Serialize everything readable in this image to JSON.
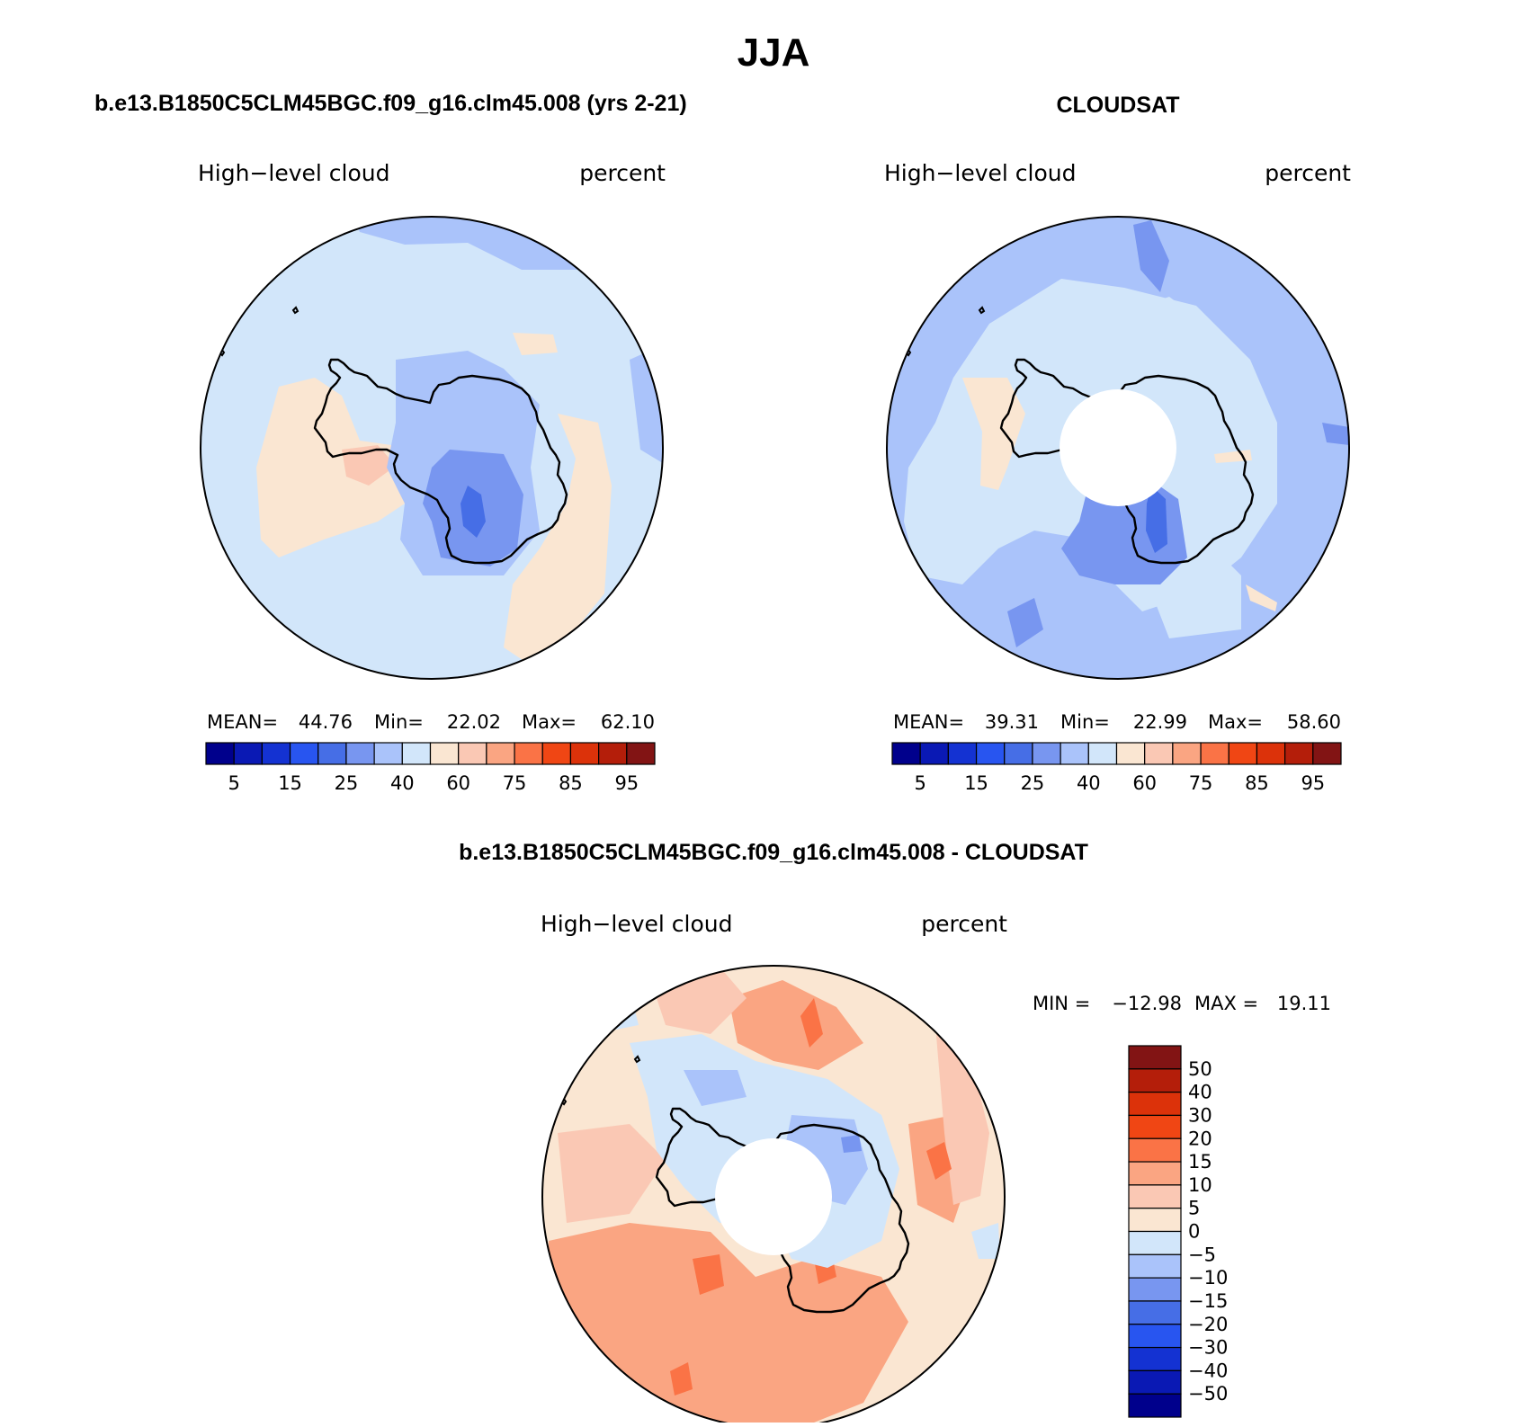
{
  "figure_title": "JJA",
  "chart_data": [
    {
      "type": "heatmap",
      "projection": "south-polar-stereographic",
      "title": "b.e13.B1850C5CLM45BGC.f09_g16.clm45.008 (yrs 2-21)",
      "variable": "High−level cloud",
      "units": "percent",
      "stats": {
        "mean_label": "MEAN=",
        "mean": "44.76",
        "min_label": "Min=",
        "min": "22.02",
        "max_label": "Max=",
        "max": "62.10"
      },
      "colorbar": {
        "orientation": "horizontal",
        "tick_labels": [
          "5",
          "15",
          "25",
          "40",
          "60",
          "75",
          "85",
          "95"
        ],
        "colors": [
          "#00008c",
          "#0a19b4",
          "#1432d2",
          "#2855f0",
          "#466ee6",
          "#7896f0",
          "#aac3fa",
          "#d2e6fa",
          "#fae6d2",
          "#fac8b4",
          "#faa582",
          "#fa7346",
          "#f04614",
          "#dc320a",
          "#b41e0a",
          "#821414"
        ]
      },
      "polar_hole": false
    },
    {
      "type": "heatmap",
      "projection": "south-polar-stereographic",
      "title": "CLOUDSAT",
      "variable": "High−level cloud",
      "units": "percent",
      "stats": {
        "mean_label": "MEAN=",
        "mean": "39.31",
        "min_label": "Min=",
        "min": "22.99",
        "max_label": "Max=",
        "max": "58.60"
      },
      "colorbar": {
        "orientation": "horizontal",
        "tick_labels": [
          "5",
          "15",
          "25",
          "40",
          "60",
          "75",
          "85",
          "95"
        ],
        "colors": [
          "#00008c",
          "#0a19b4",
          "#1432d2",
          "#2855f0",
          "#466ee6",
          "#7896f0",
          "#aac3fa",
          "#d2e6fa",
          "#fae6d2",
          "#fac8b4",
          "#faa582",
          "#fa7346",
          "#f04614",
          "#dc320a",
          "#b41e0a",
          "#821414"
        ]
      },
      "polar_hole": true
    },
    {
      "type": "heatmap",
      "projection": "south-polar-stereographic",
      "title": "b.e13.B1850C5CLM45BGC.f09_g16.clm45.008 - CLOUDSAT",
      "variable": "High−level cloud",
      "units": "percent",
      "stats": {
        "min_label": "MIN =",
        "min": "−12.98",
        "max_label": "MAX =",
        "max": "19.11"
      },
      "colorbar": {
        "orientation": "vertical",
        "tick_labels": [
          "50",
          "40",
          "30",
          "20",
          "15",
          "10",
          "5",
          "0",
          "−5",
          "−10",
          "−15",
          "−20",
          "−30",
          "−40",
          "−50"
        ],
        "colors_top_to_bottom": [
          "#821414",
          "#b41e0a",
          "#dc320a",
          "#f04614",
          "#fa7346",
          "#faa582",
          "#fac8b4",
          "#fae6d2",
          "#d2e6fa",
          "#aac3fa",
          "#7896f0",
          "#466ee6",
          "#2855f0",
          "#1432d2",
          "#0a19b4",
          "#00008c"
        ]
      },
      "polar_hole": true
    }
  ]
}
